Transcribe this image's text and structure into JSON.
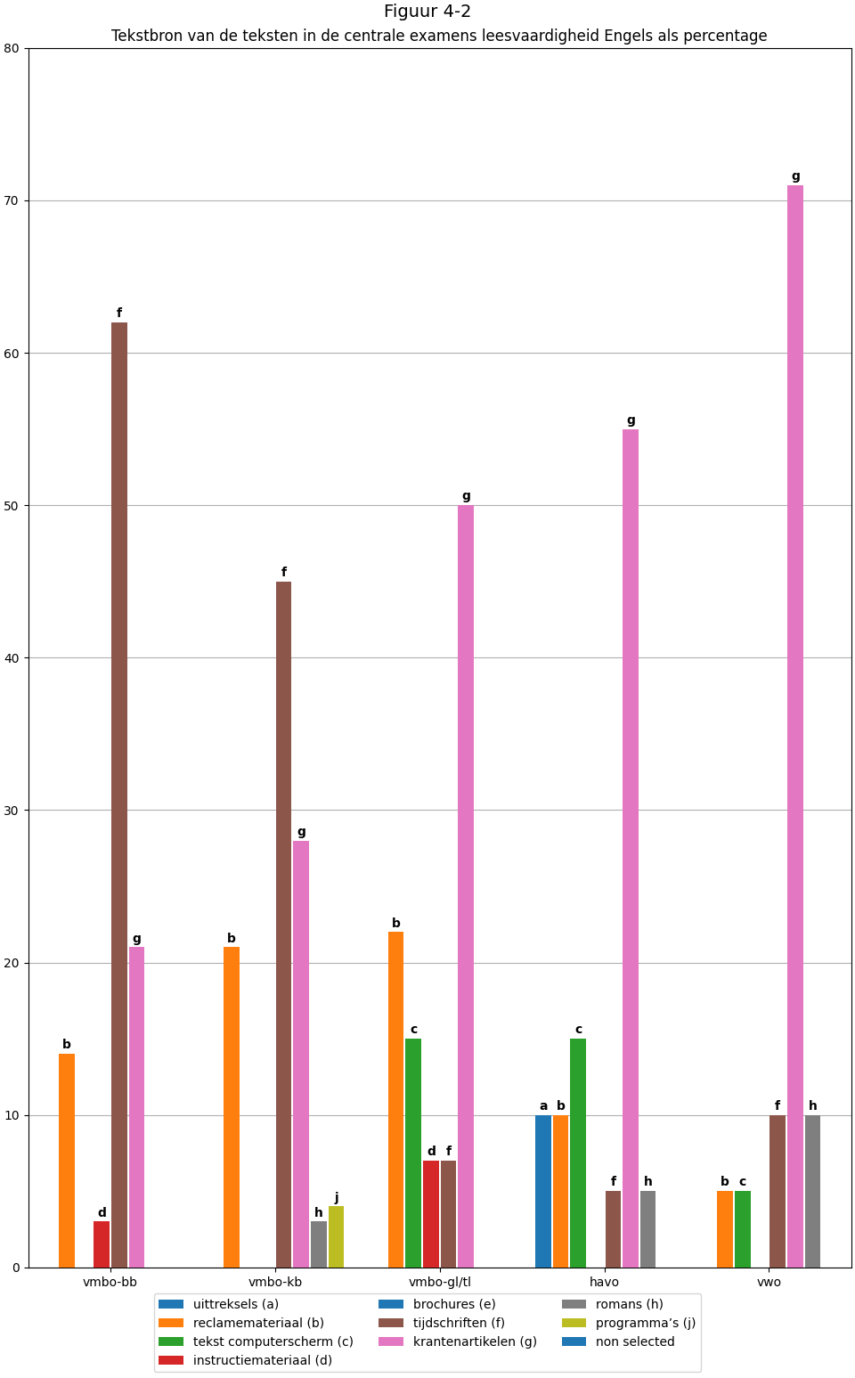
{
  "chart_data": {
    "type": "bar",
    "title": "Figuur 4-2",
    "subtitle": "Tekstbron van de teksten in de centrale examens leesvaardigheid Engels als percentage",
    "categories": [
      "vmbo-bb",
      "vmbo-kb",
      "vmbo-gl/tl",
      "havo",
      "vwo"
    ],
    "series": [
      {
        "name": "uittreksels (a)",
        "values": [
          0,
          0,
          0,
          10,
          0
        ],
        "bar_labels": [
          null,
          null,
          null,
          "a",
          null
        ]
      },
      {
        "name": "reclamemateriaal (b)",
        "values": [
          14,
          21,
          22,
          10,
          5
        ],
        "bar_labels": [
          "b",
          "b",
          "b",
          "b",
          "b"
        ]
      },
      {
        "name": "tekst computerscherm (c)",
        "values": [
          0,
          0,
          15,
          15,
          5
        ],
        "bar_labels": [
          null,
          null,
          "c",
          "c",
          "c"
        ]
      },
      {
        "name": "instructiemateriaal (d)",
        "values": [
          3,
          0,
          7,
          0,
          0
        ],
        "bar_labels": [
          "d",
          null,
          "d",
          null,
          null
        ]
      },
      {
        "name": "brochures (e)",
        "values": [
          0,
          0,
          0,
          0,
          0
        ],
        "bar_labels": [
          null,
          null,
          null,
          null,
          null
        ]
      },
      {
        "name": "tijdschriften (f)",
        "values": [
          62,
          45,
          7,
          5,
          10
        ],
        "bar_labels": [
          "f",
          "f",
          "f",
          "f",
          "f"
        ]
      },
      {
        "name": "krantenartikelen (g)",
        "values": [
          21,
          28,
          50,
          55,
          71
        ],
        "bar_labels": [
          "g",
          "g",
          "g",
          "g",
          "g"
        ]
      },
      {
        "name": "romans (h)",
        "values": [
          0,
          3,
          0,
          5,
          10
        ],
        "bar_labels": [
          null,
          "h",
          null,
          "h",
          "h"
        ]
      },
      {
        "name": "programma’s (j)",
        "values": [
          0,
          4,
          0,
          0,
          0
        ],
        "bar_labels": [
          null,
          "j",
          null,
          null,
          null
        ]
      },
      {
        "name": "non selected",
        "values": [
          0,
          0,
          0,
          0,
          0
        ],
        "bar_labels": [
          null,
          null,
          null,
          null,
          null
        ]
      }
    ],
    "ylim": [
      0,
      80
    ],
    "yticks": [
      0,
      10,
      20,
      30,
      40,
      50,
      60,
      70,
      80
    ],
    "grid": true,
    "legend": "below"
  }
}
